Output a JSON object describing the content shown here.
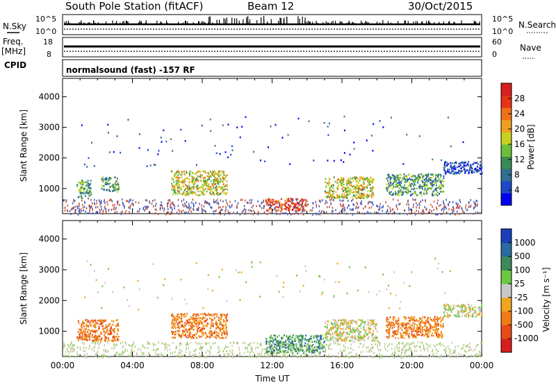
{
  "header": {
    "title": "South Pole Station (fitACF)",
    "beam": "Beam 12",
    "date": "30/Oct/2015"
  },
  "status_panels": {
    "nsky_label": "N.Sky",
    "nsearch_label": "N.Search",
    "freq_label_1": "Freq.",
    "freq_label_2": "[MHz]",
    "nave_label": "Nave",
    "cpid_label": "CPID",
    "cpid_text": "normalsound (fast) -157 RF",
    "nsky_ticks": [
      "10^5",
      "10^0"
    ],
    "nsearch_ticks": [
      "10^5",
      "10^0"
    ],
    "freq_ticks": [
      "18",
      "8"
    ],
    "nave_ticks": [
      "60",
      "0"
    ]
  },
  "chart_data": [
    {
      "type": "heatmap",
      "name": "Power",
      "ylabel": "Slant Range [km]",
      "xlabel": "",
      "y_ticks": [
        "1000",
        "2000",
        "3000",
        "4000"
      ],
      "y_range": [
        180,
        4600
      ],
      "x_range_hours": [
        0,
        24
      ],
      "colorbar_label": "Power [dB]",
      "colorbar_ticks": [
        "4",
        "8",
        "12",
        "16",
        "20",
        "24",
        "28"
      ],
      "colorbar_colors": [
        "#0000ee",
        "#1f48c8",
        "#2f6f8f",
        "#3a8a55",
        "#6bbf3a",
        "#c8d21e",
        "#f0a020",
        "#f07018",
        "#e8321a",
        "#d81e1e"
      ],
      "echo_regions": [
        {
          "t": [
            0.8,
            1.6
          ],
          "r": [
            700,
            1300
          ],
          "level": "mid"
        },
        {
          "t": [
            2.2,
            3.2
          ],
          "r": [
            900,
            1400
          ],
          "level": "mid"
        },
        {
          "t": [
            6.2,
            9.4
          ],
          "r": [
            800,
            1600
          ],
          "level": "high"
        },
        {
          "t": [
            11.6,
            14.0
          ],
          "r": [
            300,
            700
          ],
          "level": "peak"
        },
        {
          "t": [
            15.0,
            17.8
          ],
          "r": [
            700,
            1400
          ],
          "level": "high"
        },
        {
          "t": [
            18.5,
            21.8
          ],
          "r": [
            800,
            1500
          ],
          "level": "mid"
        },
        {
          "t": [
            21.8,
            24.0
          ],
          "r": [
            1500,
            1900
          ],
          "level": "low"
        }
      ]
    },
    {
      "type": "heatmap",
      "name": "Velocity",
      "ylabel": "Slant Range [km]",
      "xlabel": "Time UT",
      "y_ticks": [
        "1000",
        "2000",
        "3000",
        "4000"
      ],
      "y_range": [
        180,
        4600
      ],
      "x_ticks": [
        "00:00",
        "04:00",
        "08:00",
        "12:00",
        "16:00",
        "20:00",
        "00:00"
      ],
      "x_range_hours": [
        0,
        24
      ],
      "colorbar_label": "Velocity [m s⁻¹]",
      "colorbar_ticks": [
        "1000",
        "500",
        "100",
        "25",
        "-25",
        "-100",
        "-500",
        "-1000"
      ],
      "colorbar_colors": [
        "#1a3fb8",
        "#2a6aa0",
        "#3a8a5a",
        "#6cc842",
        "#c8c8c8",
        "#f0a51e",
        "#f07a14",
        "#e84a1a",
        "#d81e1e"
      ],
      "echo_regions": [
        {
          "t": [
            0.8,
            3.2
          ],
          "r": [
            700,
            1400
          ],
          "velocity": "away"
        },
        {
          "t": [
            6.2,
            9.4
          ],
          "r": [
            800,
            1600
          ],
          "velocity": "away"
        },
        {
          "t": [
            11.6,
            15.0
          ],
          "r": [
            300,
            900
          ],
          "velocity": "toward"
        },
        {
          "t": [
            15.0,
            18.0
          ],
          "r": [
            700,
            1400
          ],
          "velocity": "mixed"
        },
        {
          "t": [
            18.5,
            21.8
          ],
          "r": [
            800,
            1500
          ],
          "velocity": "away"
        },
        {
          "t": [
            21.8,
            24.0
          ],
          "r": [
            1500,
            1900
          ],
          "velocity": "slow"
        }
      ]
    }
  ]
}
